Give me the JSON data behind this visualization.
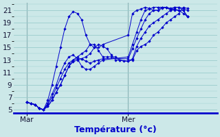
{
  "xlabel": "Température (°c)",
  "bg_color": "#cce8e8",
  "grid_color": "#99cccc",
  "line_color": "#0000cc",
  "ylim": [
    4.5,
    22.2
  ],
  "yticks": [
    5,
    7,
    9,
    11,
    13,
    15,
    17,
    19,
    21
  ],
  "xlim": [
    0,
    48
  ],
  "xtick_labels": [
    "Mar",
    "Mer"
  ],
  "xtick_positions": [
    3,
    27
  ],
  "vline_positions": [
    3,
    27
  ],
  "series": [
    {
      "x": [
        3,
        4,
        5,
        6,
        7,
        8,
        9,
        10,
        11,
        12,
        13,
        14,
        15,
        16,
        17,
        18,
        19,
        20,
        21,
        27,
        28,
        29,
        30,
        31,
        32,
        33,
        34,
        35,
        36,
        37,
        38,
        39,
        40,
        41
      ],
      "y": [
        6.2,
        6.0,
        5.8,
        5.2,
        5.0,
        6.5,
        9.0,
        12.0,
        15.0,
        18.0,
        20.0,
        20.8,
        20.5,
        19.5,
        17.0,
        15.5,
        15.0,
        15.0,
        15.5,
        17.0,
        20.5,
        21.0,
        21.2,
        21.5,
        21.3,
        21.0,
        21.0,
        21.5,
        21.5,
        21.0,
        21.2,
        21.0,
        20.5,
        20.0
      ]
    },
    {
      "x": [
        3,
        4,
        5,
        6,
        7,
        8,
        9,
        10,
        11,
        12,
        13,
        14,
        15,
        16,
        17,
        18,
        19,
        20,
        21,
        27,
        28,
        29,
        30,
        31,
        32,
        33,
        34,
        35,
        36,
        37,
        38,
        39,
        40,
        41
      ],
      "y": [
        6.2,
        6.0,
        5.8,
        5.2,
        5.0,
        6.0,
        7.5,
        9.0,
        11.0,
        12.5,
        13.5,
        13.8,
        13.2,
        12.0,
        11.5,
        11.5,
        12.0,
        12.5,
        13.0,
        13.5,
        15.5,
        17.5,
        19.5,
        21.0,
        21.2,
        21.5,
        21.5,
        21.5,
        21.5,
        21.2,
        21.0,
        21.0,
        21.0,
        20.0
      ]
    },
    {
      "x": [
        3,
        4,
        5,
        6,
        7,
        8,
        9,
        10,
        11,
        12,
        13,
        14,
        15,
        16,
        17,
        18,
        19,
        20,
        21,
        27,
        28,
        29,
        30,
        31,
        32,
        33,
        34,
        35,
        36,
        37,
        38,
        39,
        40,
        41
      ],
      "y": [
        6.2,
        6.0,
        5.8,
        5.2,
        5.0,
        5.8,
        7.0,
        8.5,
        10.0,
        11.5,
        12.5,
        13.0,
        13.2,
        13.2,
        12.8,
        12.5,
        12.8,
        13.0,
        13.2,
        13.2,
        14.8,
        16.5,
        18.0,
        19.5,
        20.5,
        21.0,
        21.0,
        21.3,
        21.5,
        21.3,
        21.5,
        21.5,
        21.3,
        21.0
      ]
    },
    {
      "x": [
        3,
        4,
        5,
        6,
        7,
        8,
        9,
        10,
        11,
        12,
        13,
        14,
        15,
        16,
        17,
        18,
        19,
        20,
        21,
        22,
        23,
        24,
        25,
        27,
        28,
        29,
        30,
        31,
        32,
        33,
        34,
        35,
        36,
        37,
        38,
        39,
        40,
        41
      ],
      "y": [
        6.2,
        6.0,
        5.8,
        5.2,
        5.0,
        5.5,
        6.5,
        7.8,
        9.0,
        10.5,
        12.0,
        13.0,
        13.5,
        14.0,
        14.5,
        15.5,
        15.5,
        14.5,
        13.5,
        13.5,
        13.5,
        13.5,
        13.0,
        12.8,
        13.2,
        15.2,
        16.5,
        17.5,
        18.5,
        19.0,
        19.5,
        20.0,
        20.5,
        21.0,
        21.5,
        21.5,
        21.0,
        20.0
      ]
    },
    {
      "x": [
        3,
        4,
        5,
        6,
        7,
        8,
        9,
        10,
        11,
        12,
        13,
        14,
        15,
        16,
        17,
        18,
        19,
        20,
        21,
        22,
        23,
        24,
        25,
        26,
        27,
        28,
        29,
        30,
        31,
        32,
        33,
        34,
        35,
        36,
        37,
        38,
        39,
        40,
        41
      ],
      "y": [
        6.2,
        6.0,
        5.8,
        5.2,
        5.0,
        5.5,
        6.5,
        7.8,
        9.0,
        10.5,
        12.0,
        12.7,
        13.0,
        13.2,
        13.5,
        14.0,
        15.0,
        15.5,
        15.2,
        14.8,
        13.8,
        13.0,
        13.0,
        12.8,
        12.8,
        13.0,
        14.5,
        15.2,
        15.5,
        16.0,
        17.0,
        17.5,
        18.2,
        19.0,
        19.5,
        20.0,
        20.5,
        21.5,
        21.3
      ]
    }
  ]
}
